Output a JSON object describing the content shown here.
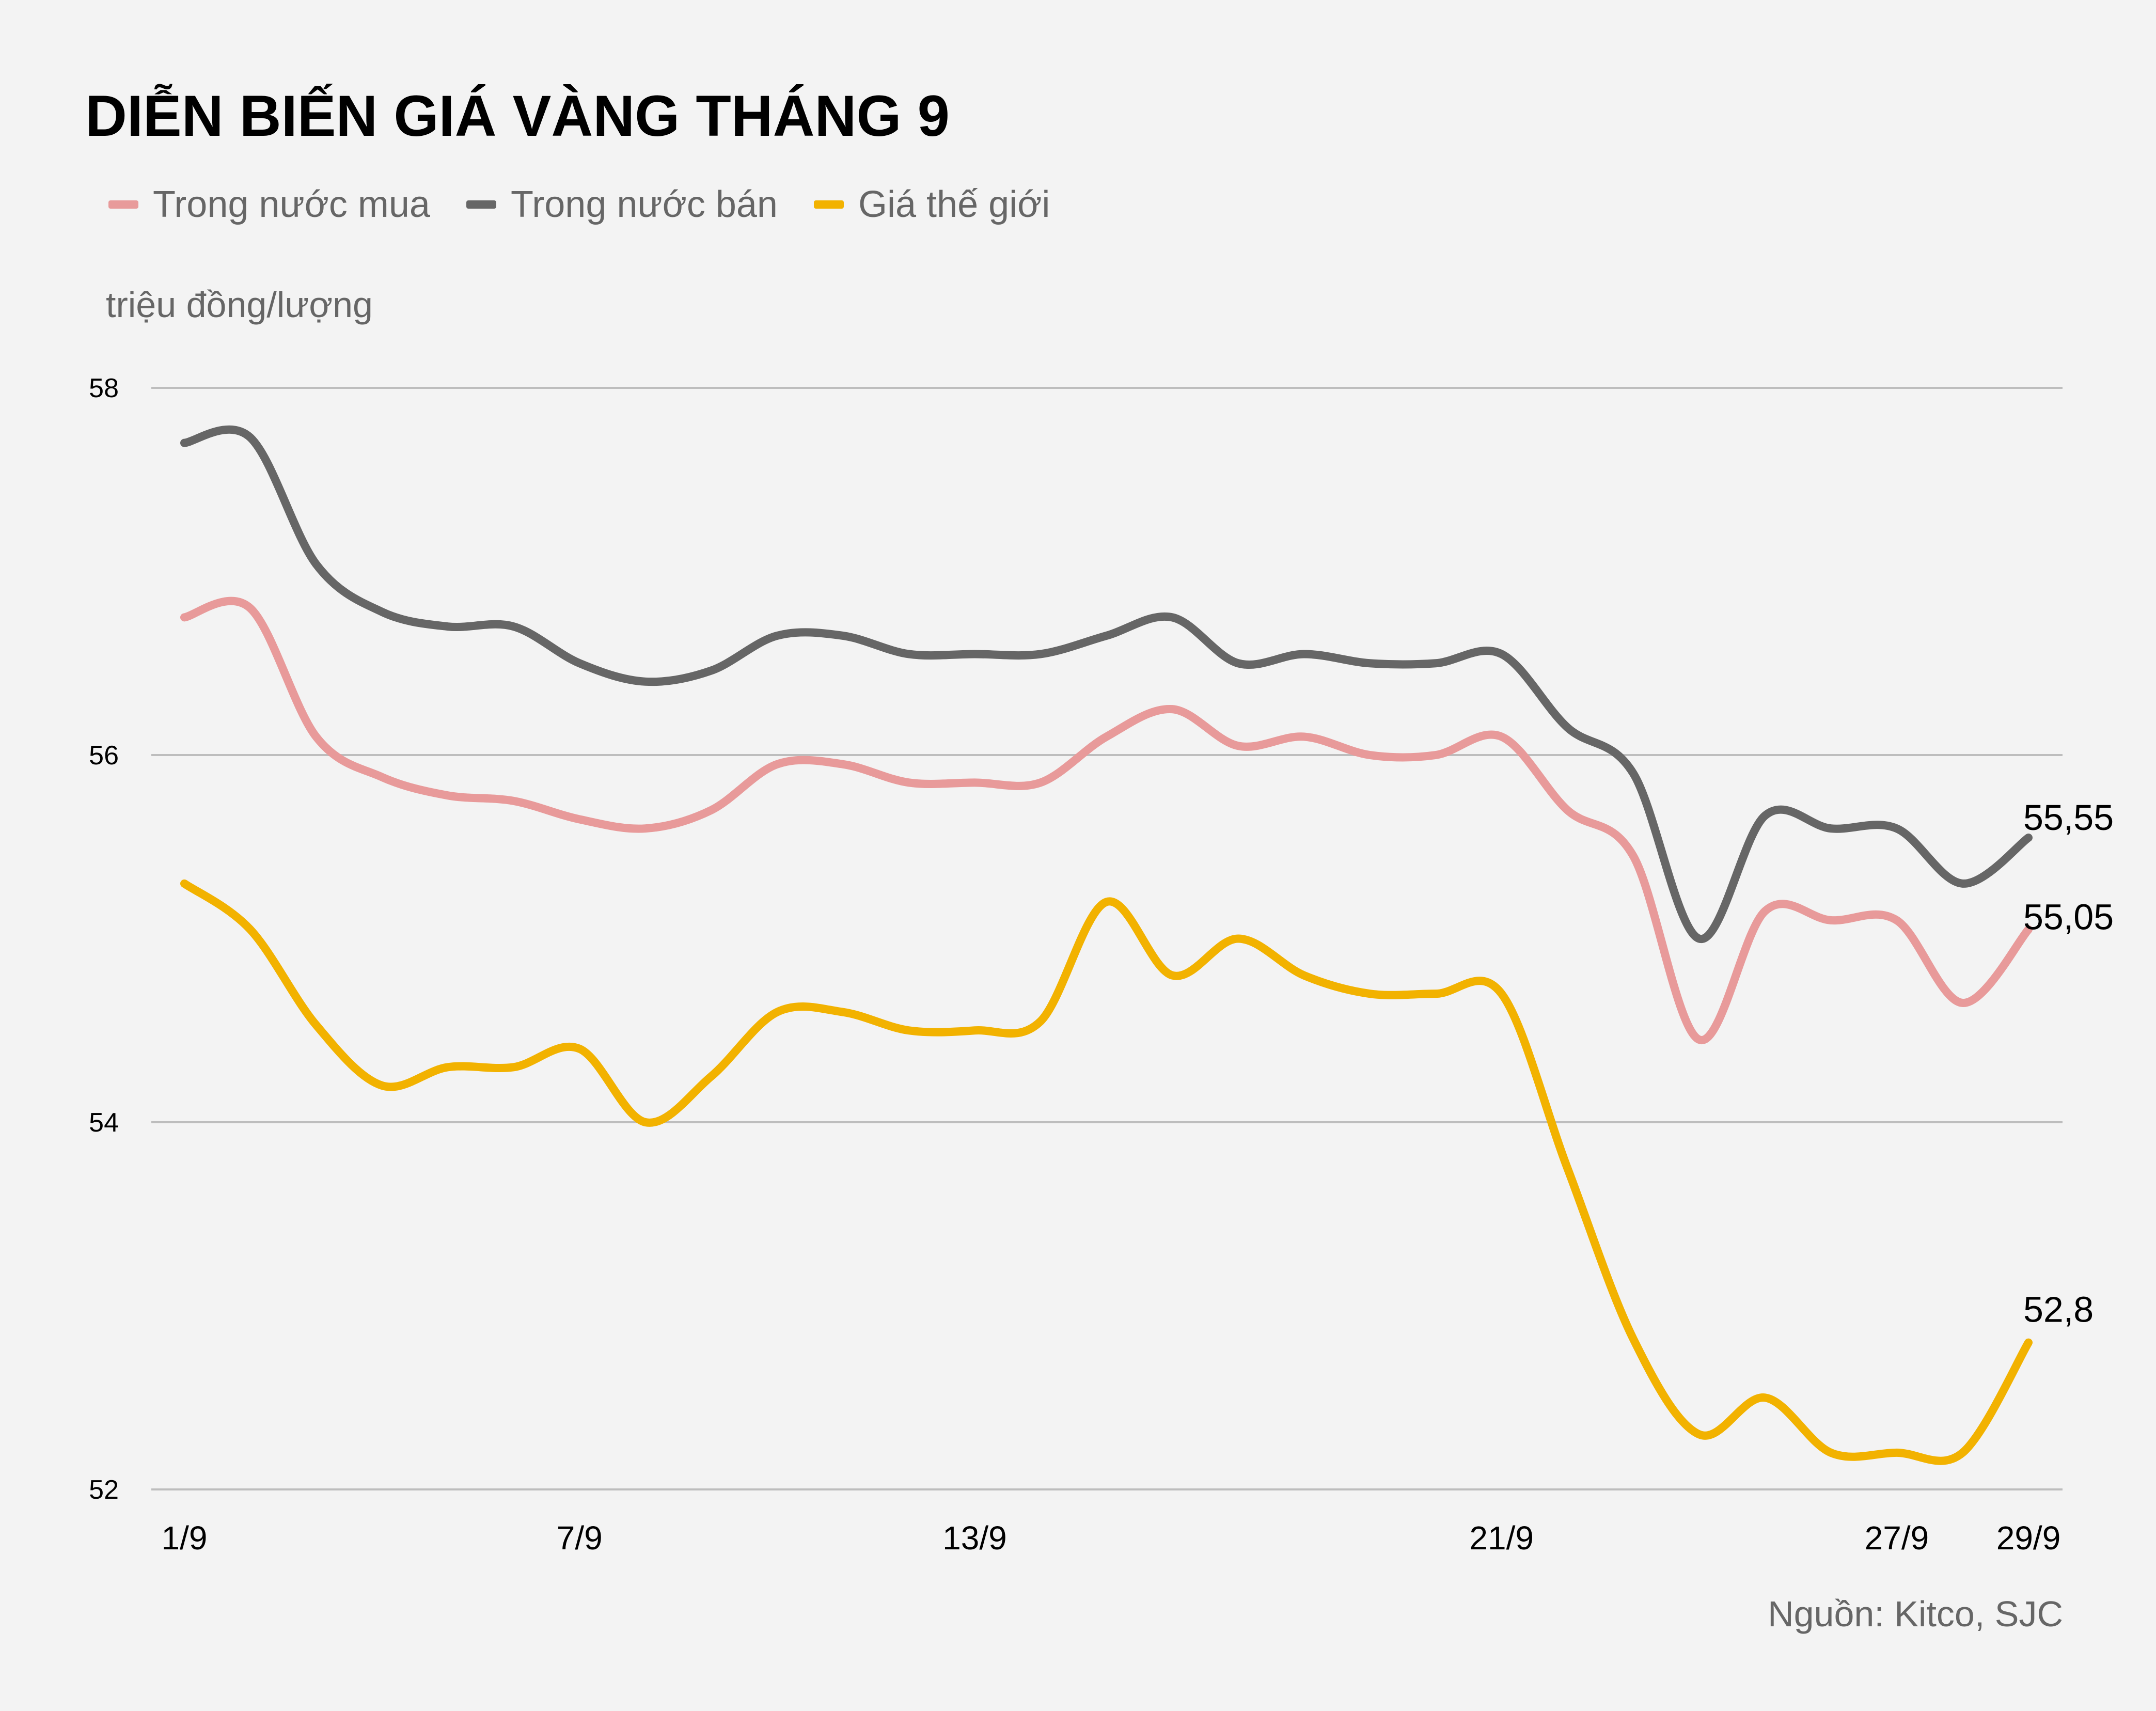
{
  "chart_data": {
    "type": "line",
    "title": "DIỄN BIẾN GIÁ VÀNG THÁNG 9",
    "ylabel": "triệu đồng/lượng",
    "source": "Nguồn: Kitco, SJC",
    "ylim": [
      52,
      58
    ],
    "yticks": [
      52,
      54,
      56,
      58
    ],
    "grid": true,
    "legend_position": "top-left",
    "x": [
      1,
      2,
      3,
      4,
      5,
      6,
      7,
      8,
      9,
      10,
      11,
      12,
      13,
      14,
      15,
      16,
      17,
      18,
      19,
      20,
      21,
      22,
      23,
      24,
      25,
      26,
      27,
      28,
      29
    ],
    "xticks": [
      {
        "day": 1,
        "label": "1/9"
      },
      {
        "day": 7,
        "label": "7/9"
      },
      {
        "day": 13,
        "label": "13/9"
      },
      {
        "day": 21,
        "label": "21/9"
      },
      {
        "day": 27,
        "label": "27/9"
      },
      {
        "day": 29,
        "label": "29/9"
      }
    ],
    "series": [
      {
        "name": "Trong nước mua",
        "color": "#e89a9a",
        "end_label": "55,05",
        "values": [
          56.75,
          56.8,
          56.1,
          55.88,
          55.78,
          55.75,
          55.65,
          55.6,
          55.7,
          55.95,
          55.95,
          55.85,
          55.85,
          55.85,
          56.1,
          56.25,
          56.05,
          56.1,
          56.0,
          56.0,
          56.1,
          55.7,
          55.45,
          54.45,
          55.15,
          55.1,
          55.1,
          54.65,
          55.05
        ]
      },
      {
        "name": "Trong nước bán",
        "color": "#666666",
        "end_label": "55,55",
        "values": [
          57.7,
          57.73,
          57.04,
          56.78,
          56.7,
          56.7,
          56.5,
          56.4,
          56.46,
          56.65,
          56.65,
          56.55,
          56.55,
          56.55,
          56.65,
          56.75,
          56.5,
          56.55,
          56.5,
          56.5,
          56.55,
          56.15,
          55.9,
          55.0,
          55.67,
          55.6,
          55.6,
          55.3,
          55.55
        ]
      },
      {
        "name": "Giá thế giới",
        "color": "#f2b200",
        "end_label": "52,8",
        "values": [
          55.3,
          55.05,
          54.53,
          54.2,
          54.3,
          54.3,
          54.4,
          54.0,
          54.25,
          54.6,
          54.6,
          54.5,
          54.5,
          54.55,
          55.2,
          54.8,
          55.0,
          54.8,
          54.7,
          54.7,
          54.7,
          53.75,
          52.82,
          52.3,
          52.5,
          52.2,
          52.2,
          52.2,
          52.8
        ]
      }
    ]
  }
}
